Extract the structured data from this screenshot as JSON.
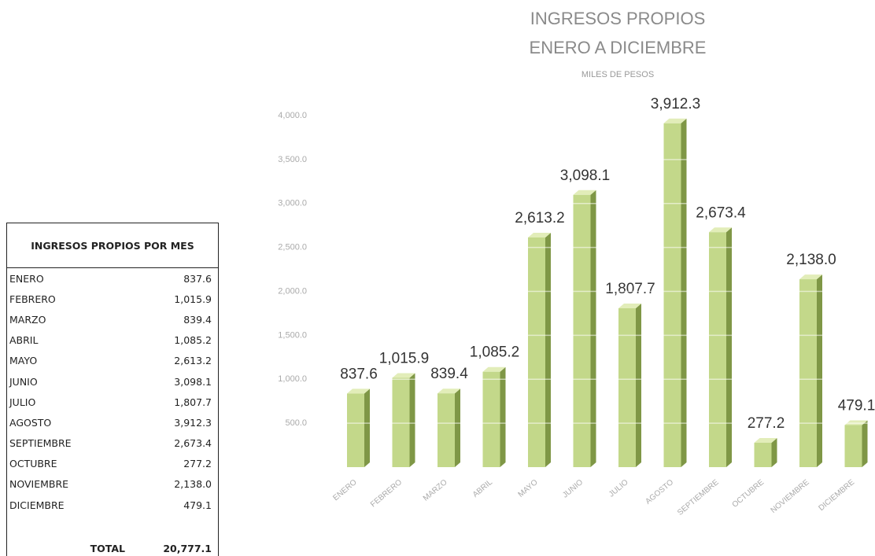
{
  "chart_data": {
    "type": "bar3d",
    "title": "INGRESOS PROPIOS",
    "subtitle": "ENERO A DICIEMBRE",
    "unit_label": "MILES DE PESOS",
    "categories": [
      "ENERO",
      "FEBRERO",
      "MARZO",
      "ABRIL",
      "MAYO",
      "JUNIO",
      "JULIO",
      "AGOSTO",
      "SEPTIEMBRE",
      "OCTUBRE",
      "NOVIEMBRE",
      "DICIEMBRE"
    ],
    "values": [
      837.6,
      1015.9,
      839.4,
      1085.2,
      2613.2,
      3098.1,
      1807.7,
      3912.3,
      2673.4,
      277.2,
      2138.0,
      479.1
    ],
    "value_labels": [
      "837.6",
      "1,015.9",
      "839.4",
      "1,085.2",
      "2,613.2",
      "3,098.1",
      "1,807.7",
      "3,912.3",
      "2,673.4",
      "277.2",
      "2,138.0",
      "479.1"
    ],
    "color": "#c3d88a",
    "ylim": [
      0,
      4000
    ],
    "yticks": [
      {
        "value": 500,
        "label": "500.0"
      },
      {
        "value": 1000,
        "label": "1,000.0"
      },
      {
        "value": 1500,
        "label": "1,500.0"
      },
      {
        "value": 2000,
        "label": "2,000.0"
      },
      {
        "value": 2500,
        "label": "2,500.0"
      },
      {
        "value": 3000,
        "label": "3,000.0"
      },
      {
        "value": 3500,
        "label": "3,500.0"
      },
      {
        "value": 4000,
        "label": "4,000.0"
      }
    ],
    "grid": true
  },
  "table": {
    "title": "INGRESOS PROPIOS POR MES",
    "rows": [
      [
        "ENERO",
        "837.6"
      ],
      [
        "FEBRERO",
        "1,015.9"
      ],
      [
        "MARZO",
        "839.4"
      ],
      [
        "ABRIL",
        "1,085.2"
      ],
      [
        "MAYO",
        "2,613.2"
      ],
      [
        "JUNIO",
        "3,098.1"
      ],
      [
        "JULIO",
        "1,807.7"
      ],
      [
        "AGOSTO",
        "3,912.3"
      ],
      [
        "SEPTIEMBRE",
        "2,673.4"
      ],
      [
        "OCTUBRE",
        "277.2"
      ],
      [
        "NOVIEMBRE",
        "2,138.0"
      ],
      [
        "DICIEMBRE",
        "479.1"
      ]
    ],
    "total": [
      "TOTAL",
      "20,777.1"
    ]
  }
}
